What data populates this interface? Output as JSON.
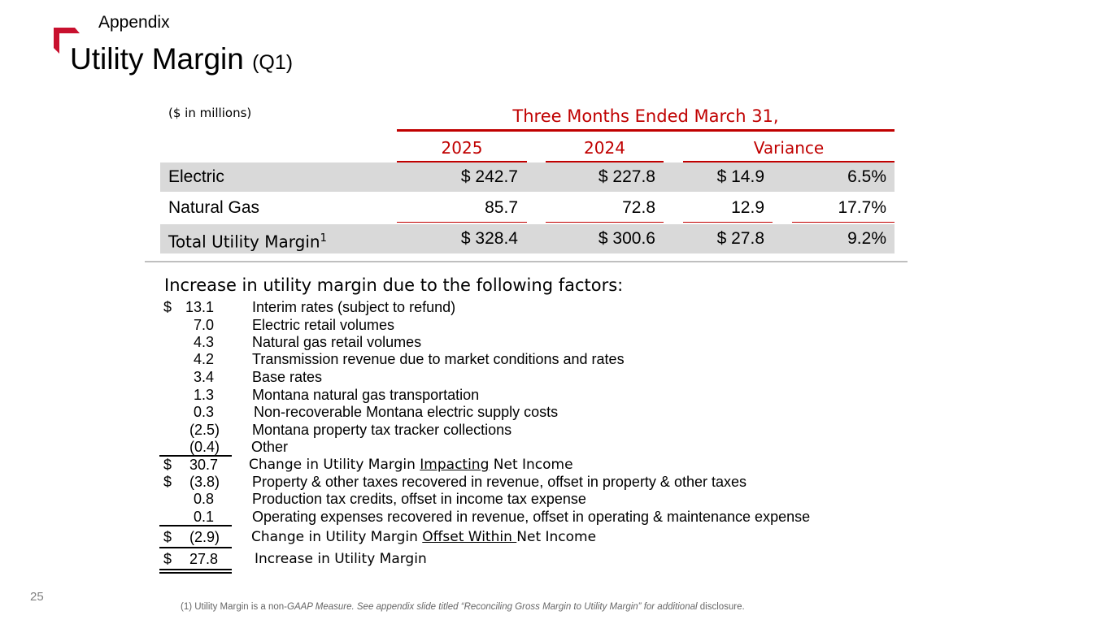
{
  "header": {
    "section": "Appendix",
    "title": "Utility Margin",
    "title_sub": "(Q1)",
    "accent_color": "#c8102e"
  },
  "table": {
    "units": "($ in millions)",
    "period_header": "Three Months Ended March 31,",
    "columns": [
      "2025",
      "2024",
      "Variance"
    ],
    "rows": [
      {
        "label": "Electric",
        "sup": "",
        "y2025": "$ 242.7",
        "y2024": "$ 227.8",
        "var_amt": "$ 14.9",
        "var_pct": "6.5%"
      },
      {
        "label": "Natural Gas",
        "sup": "",
        "y2025": "85.7",
        "y2024": "72.8",
        "var_amt": "12.9",
        "var_pct": "17.7%"
      },
      {
        "label": "Total Utility Margin",
        "sup": "1",
        "y2025": "$ 328.4",
        "y2024": "$ 300.6",
        "var_amt": "$ 27.8",
        "var_pct": "9.2%"
      }
    ]
  },
  "factors": {
    "heading": "Increase in utility margin due to the following factors:",
    "lines": [
      {
        "cur": "$",
        "amt": "13.1",
        "desc": "Interim rates (subject to refund)"
      },
      {
        "cur": "",
        "amt": "7.0",
        "desc": "Electric retail volumes"
      },
      {
        "cur": "",
        "amt": "4.3",
        "desc": "Natural gas retail volumes"
      },
      {
        "cur": "",
        "amt": "4.2",
        "desc": "Transmission revenue due to market conditions and rates"
      },
      {
        "cur": "",
        "amt": "3.4",
        "desc": "Base rates"
      },
      {
        "cur": "",
        "amt": "1.3",
        "desc": "Montana natural gas transportation"
      },
      {
        "cur": "",
        "amt": "0.3",
        "desc": "Non-recoverable Montana electric supply costs"
      },
      {
        "cur": "",
        "amt": "(2.5)",
        "desc": "Montana property tax tracker collections"
      },
      {
        "cur": "",
        "amt": "(0.4)",
        "desc": "Other"
      }
    ],
    "subtotal_impacting": {
      "cur": "$",
      "amt": "30.7",
      "desc_pre": "Change in Utility Margin ",
      "desc_u": "Impacting",
      "desc_post": " Net Income"
    },
    "offset_lines": [
      {
        "cur": "$",
        "amt": "(3.8)",
        "desc": "Property & other taxes recovered in revenue, offset in property & other taxes"
      },
      {
        "cur": "",
        "amt": "0.8",
        "desc": "Production tax credits, offset in income tax expense"
      },
      {
        "cur": "",
        "amt": "0.1",
        "desc": "Operating expenses recovered in revenue, offset in operating & maintenance expense"
      }
    ],
    "subtotal_offset": {
      "cur": "$",
      "amt": "(2.9)",
      "desc_pre": "Change in Utility Margin ",
      "desc_u": "Offset Within ",
      "desc_post": "Net Income"
    },
    "total": {
      "cur": "$",
      "amt": "27.8",
      "desc": "Increase in Utility Margin"
    }
  },
  "footer": {
    "page_number": "25",
    "footnote_pre": "(1) Utility Margin is a non-",
    "footnote_italic": "GAAP Measure. See appendix slide titled “Reconciling Gross Margin to Utility Margin” for additional",
    "footnote_post": " disclosure."
  }
}
